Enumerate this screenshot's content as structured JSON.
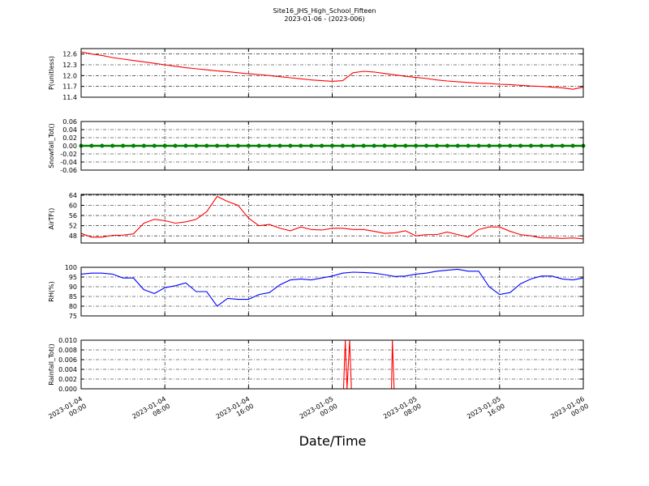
{
  "title": "Site16_JHS_High_School_Fifteen",
  "subtitle": "2023-01-06 - (2023-006)",
  "xlabel": "Date/Time",
  "xlim": [
    "2023-01-04 00:00",
    "2023-01-06 00:00"
  ],
  "xticks": [
    "2023-01-04 00:00",
    "2023-01-04 08:00",
    "2023-01-04 16:00",
    "2023-01-05 00:00",
    "2023-01-05 08:00",
    "2023-01-05 16:00",
    "2023-01-06 00:00"
  ],
  "x": [
    "2023-01-04 00:00",
    "2023-01-04 01:00",
    "2023-01-04 02:00",
    "2023-01-04 03:00",
    "2023-01-04 04:00",
    "2023-01-04 05:00",
    "2023-01-04 06:00",
    "2023-01-04 07:00",
    "2023-01-04 08:00",
    "2023-01-04 09:00",
    "2023-01-04 10:00",
    "2023-01-04 11:00",
    "2023-01-04 12:00",
    "2023-01-04 13:00",
    "2023-01-04 14:00",
    "2023-01-04 15:00",
    "2023-01-04 16:00",
    "2023-01-04 17:00",
    "2023-01-04 18:00",
    "2023-01-04 19:00",
    "2023-01-04 20:00",
    "2023-01-04 21:00",
    "2023-01-04 22:00",
    "2023-01-04 23:00",
    "2023-01-05 00:00",
    "2023-01-05 01:00",
    "2023-01-05 02:00",
    "2023-01-05 03:00",
    "2023-01-05 04:00",
    "2023-01-05 05:00",
    "2023-01-05 06:00",
    "2023-01-05 07:00",
    "2023-01-05 08:00",
    "2023-01-05 09:00",
    "2023-01-05 10:00",
    "2023-01-05 11:00",
    "2023-01-05 12:00",
    "2023-01-05 13:00",
    "2023-01-05 14:00",
    "2023-01-05 15:00",
    "2023-01-05 16:00",
    "2023-01-05 17:00",
    "2023-01-05 18:00",
    "2023-01-05 19:00",
    "2023-01-05 20:00",
    "2023-01-05 21:00",
    "2023-01-05 22:00",
    "2023-01-05 23:00",
    "2023-01-06 00:00"
  ],
  "chart_data": [
    {
      "type": "line",
      "ylabel": "P(unitless)",
      "color": "#ff0000",
      "grid": true,
      "ylim": [
        11.4,
        12.75
      ],
      "yticks": [
        11.4,
        11.7,
        {
          "value": 12,
          "label": "12.0"
        },
        12.3,
        12.6
      ],
      "values": [
        12.66,
        12.6,
        12.56,
        12.5,
        12.46,
        12.42,
        12.38,
        12.34,
        12.3,
        12.26,
        12.22,
        12.19,
        12.16,
        12.13,
        12.11,
        12.08,
        12.05,
        12.03,
        12.0,
        11.97,
        11.94,
        11.91,
        11.88,
        11.86,
        11.84,
        11.86,
        12.08,
        12.12,
        12.1,
        12.06,
        12.02,
        11.98,
        11.95,
        11.92,
        11.88,
        11.85,
        11.83,
        11.81,
        11.79,
        11.78,
        11.76,
        11.75,
        11.73,
        11.71,
        11.7,
        11.68,
        11.66,
        11.62,
        11.68
      ]
    },
    {
      "type": "line",
      "ylabel": "Snowfall_Tot()",
      "color": "#008000",
      "marker": true,
      "grid": true,
      "ylim": [
        -0.06,
        0.06
      ],
      "yticks": [
        -0.06,
        -0.04,
        -0.02,
        {
          "value": 0,
          "label": "0.00"
        },
        0.02,
        0.04,
        0.06
      ],
      "values": [
        0,
        0,
        0,
        0,
        0,
        0,
        0,
        0,
        0,
        0,
        0,
        0,
        0,
        0,
        0,
        0,
        0,
        0,
        0,
        0,
        0,
        0,
        0,
        0,
        0,
        0,
        0,
        0,
        0,
        0,
        0,
        0,
        0,
        0,
        0,
        0,
        0,
        0,
        0,
        0,
        0,
        0,
        0,
        0,
        0,
        0,
        0,
        0,
        0
      ]
    },
    {
      "type": "line",
      "ylabel": "AirTF()",
      "color": "#ff0000",
      "grid": true,
      "ylim": [
        45.2,
        64.3
      ],
      "yticks": [
        48,
        52,
        56,
        60,
        64
      ],
      "values": [
        49,
        47.5,
        47.5,
        48.2,
        48.3,
        48.8,
        53,
        54.5,
        54,
        53,
        53.5,
        54.5,
        57.5,
        63.5,
        61.5,
        60,
        55,
        52,
        52.5,
        51,
        50,
        51.5,
        50.5,
        50.3,
        51,
        51,
        50.5,
        50.5,
        49.8,
        49,
        49.2,
        50,
        48,
        48.5,
        48.5,
        49.5,
        48.5,
        47.5,
        50.5,
        51.5,
        51.5,
        49.8,
        48.5,
        48,
        47.2,
        47.2,
        47,
        47.2,
        46.8
      ]
    },
    {
      "type": "line",
      "ylabel": "RH(%)",
      "color": "#0000ff",
      "grid": true,
      "ylim": [
        75,
        100
      ],
      "yticks": [
        75,
        80,
        85,
        90,
        95,
        100
      ],
      "values": [
        96.5,
        97,
        97,
        96.5,
        94.5,
        94.5,
        88.5,
        86.5,
        89.5,
        90.5,
        92,
        87.5,
        87.5,
        80,
        84,
        83.5,
        83.5,
        86,
        87,
        91,
        93.5,
        94,
        93.5,
        94.5,
        95.5,
        97,
        97.5,
        97.3,
        97,
        96.2,
        95.3,
        95.5,
        96.5,
        97,
        98,
        98.5,
        99,
        98,
        98,
        90,
        86,
        87,
        91.5,
        94,
        95.5,
        95.5,
        94,
        93.5,
        94.5
      ]
    },
    {
      "type": "line",
      "ylabel": "Rainfall_Tot()",
      "color": "#ff0000",
      "grid": true,
      "ylim": [
        0,
        0.01
      ],
      "yticks": [
        {
          "value": 0,
          "label": "0.000"
        },
        0.002,
        0.004,
        0.006,
        0.008,
        {
          "value": 0.01,
          "label": "0.010"
        }
      ],
      "x": [
        "2023-01-04 00:00",
        "2023-01-05 01:05",
        "2023-01-05 01:15",
        "2023-01-05 01:25",
        "2023-01-05 01:40",
        "2023-01-05 01:50",
        "2023-01-05 05:40",
        "2023-01-05 05:45",
        "2023-01-05 05:55",
        "2023-01-06 00:00"
      ],
      "values": [
        0,
        0,
        0.01,
        0,
        0.01,
        0,
        0,
        0.01,
        0,
        0
      ]
    }
  ]
}
